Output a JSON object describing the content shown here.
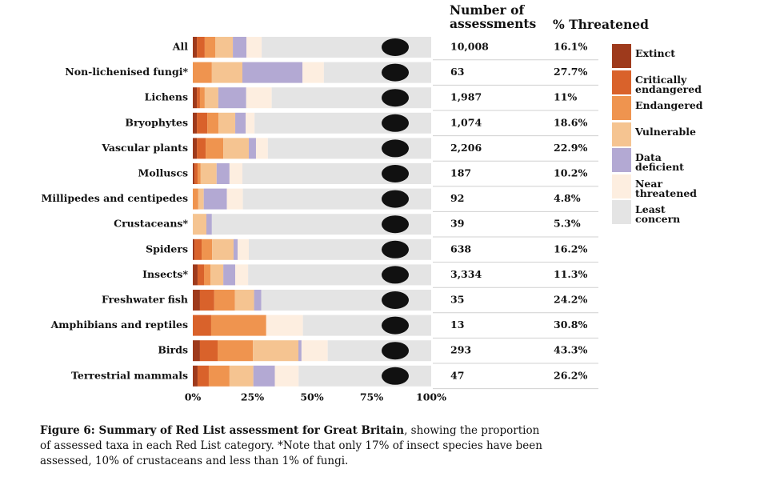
{
  "chart_data": {
    "type": "stacked-barh",
    "categories": [
      "All",
      "Non-lichenised fungi*",
      "Lichens",
      "Bryophytes",
      "Vascular plants",
      "Molluscs",
      "Millipedes and centipedes",
      "Crustaceans*",
      "Spiders",
      "Insects*",
      "Freshwater fish",
      "Amphibians and reptiles",
      "Birds",
      "Terrestrial mammals"
    ],
    "series": [
      {
        "name": "Extinct",
        "color": "#9e3a1c",
        "values": [
          1.7,
          0,
          1.7,
          1.7,
          1.7,
          0.7,
          0,
          0,
          0.7,
          2,
          3,
          0,
          3,
          2
        ]
      },
      {
        "name": "Critically endangered",
        "color": "#d9622b",
        "values": [
          3.3,
          0,
          1.3,
          4.4,
          3.7,
          1.3,
          0,
          0,
          3,
          2.7,
          6,
          7.7,
          7.4,
          4.7
        ]
      },
      {
        "name": "Endangered",
        "color": "#ef944f",
        "values": [
          4.4,
          8,
          2,
          4.7,
          7.4,
          1.3,
          2.3,
          0,
          4.4,
          2.7,
          8.7,
          23.1,
          14.8,
          8.7
        ]
      },
      {
        "name": "Vulnerable",
        "color": "#f5c491",
        "values": [
          7.4,
          12.8,
          5.7,
          7,
          10.7,
          6.7,
          2.3,
          5.7,
          9,
          5.4,
          8,
          0,
          19.1,
          10
        ]
      },
      {
        "name": "Data deficient",
        "color": "#b3a9d3",
        "values": [
          5.7,
          25.2,
          11.7,
          4.4,
          3,
          5.4,
          9.7,
          2.3,
          1.7,
          5,
          3,
          0,
          1.3,
          9
        ]
      },
      {
        "name": "Near threatened",
        "color": "#fdeee0",
        "values": [
          6.4,
          9,
          10.7,
          3.7,
          5,
          5.4,
          6.7,
          0,
          4.7,
          5.4,
          0,
          15.4,
          11,
          10
        ]
      },
      {
        "name": "Least concern",
        "color": "#e4e4e4",
        "values": [
          71.1,
          45,
          66.9,
          74.1,
          68.5,
          79.2,
          79,
          92,
          76.5,
          76.8,
          71.3,
          53.8,
          43.4,
          55.6
        ]
      }
    ],
    "xlim": [
      0,
      100
    ],
    "xticks": [
      {
        "value": 0,
        "label": "0%"
      },
      {
        "value": 25,
        "label": "25%"
      },
      {
        "value": 50,
        "label": "50%"
      },
      {
        "value": 75,
        "label": "75%"
      },
      {
        "value": 100,
        "label": "100%"
      }
    ],
    "grid": false,
    "legend_position": "right",
    "table": {
      "headers": [
        "Number of assessments",
        "% Threatened"
      ],
      "assessments": [
        "10,008",
        "63",
        "1,987",
        "1,074",
        "2,206",
        "187",
        "92",
        "39",
        "638",
        "3,334",
        "35",
        "13",
        "293",
        "47"
      ],
      "threatened": [
        "16.1%",
        "27.7%",
        "11%",
        "18.6%",
        "22.9%",
        "10.2%",
        "4.8%",
        "5.3%",
        "16.2%",
        "11.3%",
        "24.2%",
        "30.8%",
        "43.3%",
        "26.2%"
      ]
    },
    "caption_title": "Figure 6: Summary of Red List assessment for Great Britain",
    "caption_text": ", showing the proportion of assessed taxa in each Red List category. *Note that only 17% of insect species have been assessed, 10% of crustaceans and less than 1% of fungi."
  }
}
